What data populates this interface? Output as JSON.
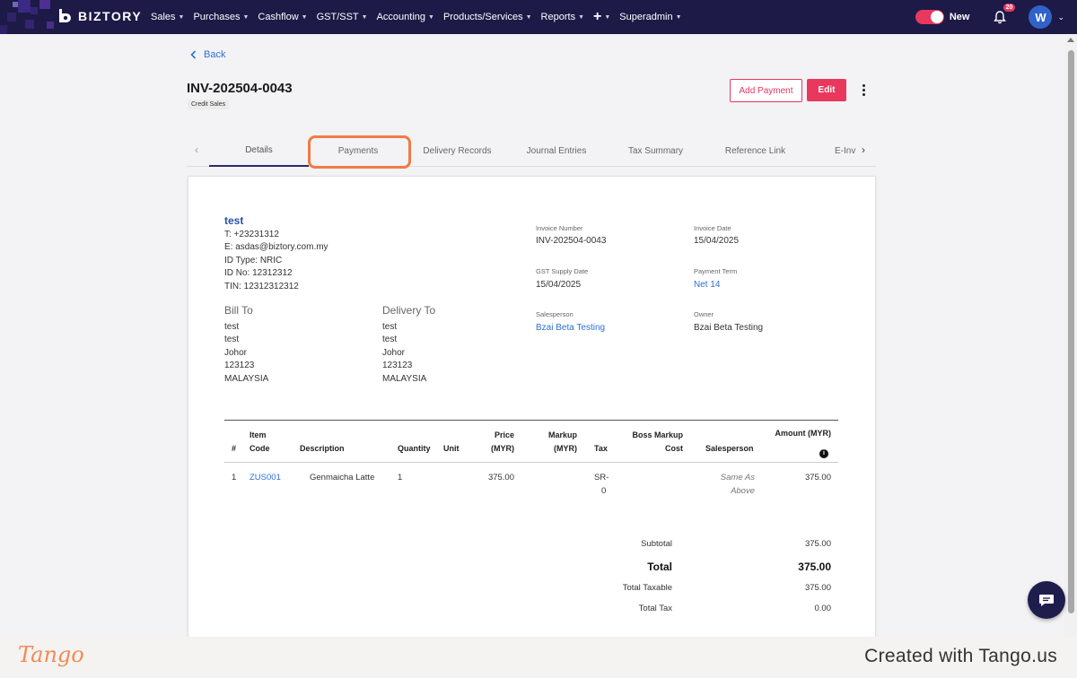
{
  "app": {
    "brand": "BIZTORY"
  },
  "nav": {
    "items": [
      {
        "label": "Sales",
        "has_caret": true
      },
      {
        "label": "Purchases",
        "has_caret": true
      },
      {
        "label": "Cashflow",
        "has_caret": true
      },
      {
        "label": "GST/SST",
        "has_caret": true
      },
      {
        "label": "Accounting",
        "has_caret": true
      },
      {
        "label": "Products/Services",
        "has_caret": true
      },
      {
        "label": "Reports",
        "has_caret": true
      },
      {
        "label": "+",
        "has_caret": true
      },
      {
        "label": "Superadmin",
        "has_caret": true
      }
    ],
    "toggle_label": "New",
    "notification_count": "20",
    "avatar_initial": "W"
  },
  "page": {
    "back_label": "Back",
    "invoice_title": "INV-202504-0043",
    "sales_tag": "Credit Sales",
    "add_payment_label": "Add Payment",
    "edit_label": "Edit"
  },
  "tabs": [
    {
      "label": "Details",
      "active": true
    },
    {
      "label": "Payments",
      "active": false
    },
    {
      "label": "Delivery Records",
      "active": false
    },
    {
      "label": "Journal Entries",
      "active": false
    },
    {
      "label": "Tax Summary",
      "active": false
    },
    {
      "label": "Reference Link",
      "active": false
    },
    {
      "label": "E-Inv",
      "active": false
    }
  ],
  "customer": {
    "name": "test",
    "phone": "T: +23231312",
    "email": "E: asdas@biztory.com.my",
    "id_type": "ID Type: NRIC",
    "id_no": "ID No: 12312312",
    "tin": "TIN: 12312312312"
  },
  "bill_to": {
    "heading": "Bill To",
    "lines": [
      "test",
      "test",
      "Johor",
      "123123",
      "MALAYSIA"
    ]
  },
  "delivery_to": {
    "heading": "Delivery To",
    "lines": [
      "test",
      "test",
      "Johor",
      "123123",
      "MALAYSIA"
    ]
  },
  "meta": {
    "invoice_number_label": "Invoice Number",
    "invoice_number": "INV-202504-0043",
    "invoice_date_label": "Invoice Date",
    "invoice_date": "15/04/2025",
    "gst_supply_date_label": "GST Supply Date",
    "gst_supply_date": "15/04/2025",
    "payment_term_label": "Payment Term",
    "payment_term": "Net 14",
    "salesperson_label": "Salesperson",
    "salesperson": "Bzai Beta Testing",
    "owner_label": "Owner",
    "owner": "Bzai Beta Testing"
  },
  "table": {
    "headers": {
      "num": "#",
      "item_code_1": "Item",
      "item_code_2": "Code",
      "description": "Description",
      "quantity": "Quantity",
      "unit": "Unit",
      "price_1": "Price",
      "price_2": "(MYR)",
      "markup_1": "Markup",
      "markup_2": "(MYR)",
      "tax": "Tax",
      "boss_1": "Boss Markup",
      "boss_2": "Cost",
      "salesperson": "Salesperson",
      "amount": "Amount (MYR)"
    },
    "rows": [
      {
        "num": "1",
        "item_code": "ZUS001",
        "description": "Genmaicha Latte",
        "quantity": "1",
        "unit": "",
        "price": "375.00",
        "markup": "",
        "tax_1": "SR-",
        "tax_2": "0",
        "boss_cost": "",
        "salesperson_1": "Same As",
        "salesperson_2": "Above",
        "amount": "375.00"
      }
    ]
  },
  "totals": {
    "subtotal_label": "Subtotal",
    "subtotal": "375.00",
    "total_label": "Total",
    "total": "375.00",
    "taxable_label": "Total Taxable",
    "taxable": "375.00",
    "tax_label": "Total Tax",
    "tax": "0.00"
  },
  "footer": {
    "tango_logo": "Tango",
    "created_with": "Created with Tango.us"
  },
  "colors": {
    "navbar": "#1d1a47",
    "accent": "#e8385d",
    "link": "#2f6fd6",
    "highlight": "#f07a45"
  }
}
